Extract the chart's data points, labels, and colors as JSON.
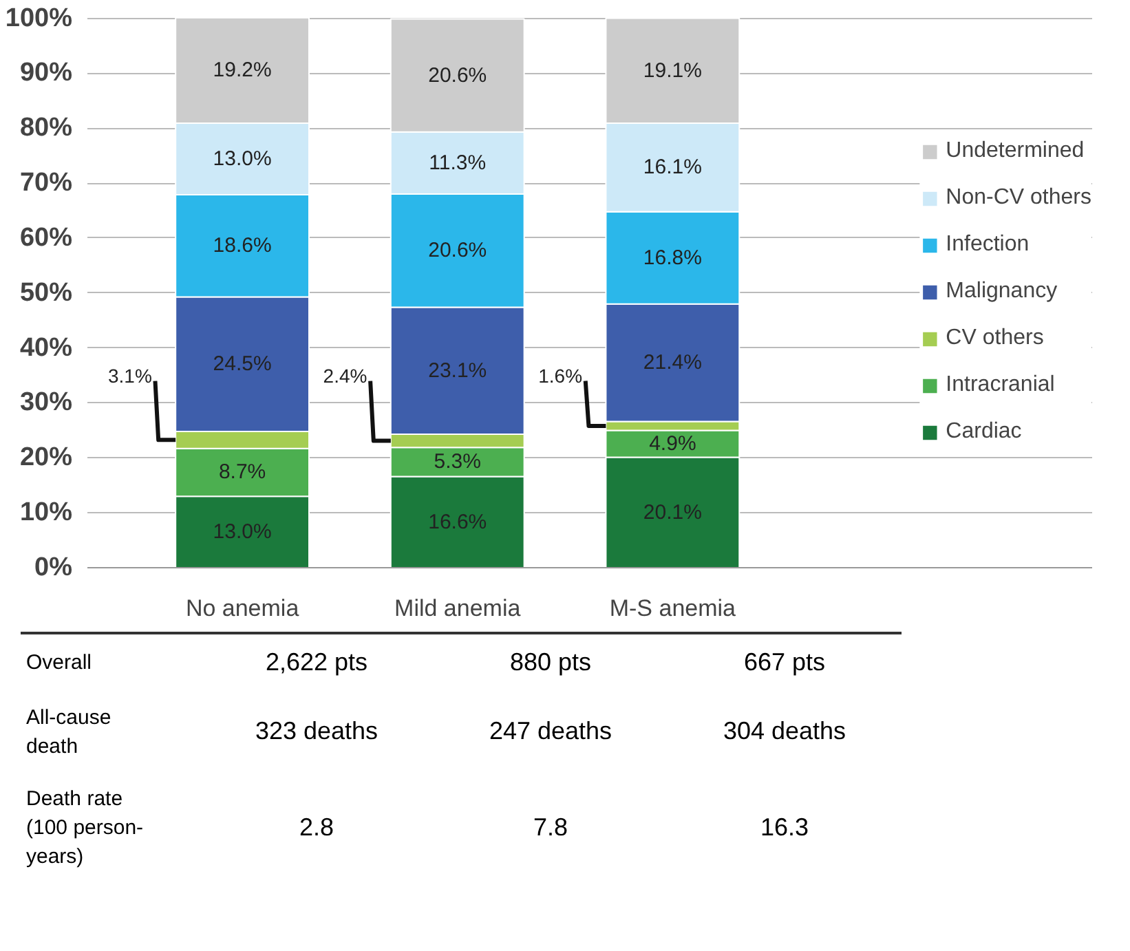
{
  "chart_data": {
    "type": "bar",
    "stacked": true,
    "categories": [
      "No anemia",
      "Mild anemia",
      "M-S anemia"
    ],
    "ylim": [
      0,
      100.2
    ],
    "yticks": [
      {
        "value": 0,
        "label": "0%"
      },
      {
        "value": 10,
        "label": "10%"
      },
      {
        "value": 20,
        "label": "20%"
      },
      {
        "value": 30,
        "label": "30%"
      },
      {
        "value": 40,
        "label": "40%"
      },
      {
        "value": 50,
        "label": "50%"
      },
      {
        "value": 60,
        "label": "60%"
      },
      {
        "value": 70,
        "label": "70%"
      },
      {
        "value": 80,
        "label": "80%"
      },
      {
        "value": 90,
        "label": "90%"
      },
      {
        "value": 100,
        "label": "100%"
      }
    ],
    "grid": "y",
    "legend": "right",
    "series": [
      {
        "name": "Cardiac",
        "color": "#1b7a3c",
        "values": [
          13.0,
          16.6,
          20.1
        ],
        "value_labels": [
          "13.0%",
          "16.6%",
          "20.1%"
        ]
      },
      {
        "name": "Intracranial",
        "color": "#4caf50",
        "values": [
          8.7,
          5.3,
          4.9
        ],
        "value_labels": [
          "8.7%",
          "5.3%",
          "4.9%"
        ]
      },
      {
        "name": "CV others",
        "color": "#a5cd52",
        "values": [
          3.1,
          2.4,
          1.6
        ],
        "value_labels": [
          "3.1%",
          "2.4%",
          "1.6%"
        ]
      },
      {
        "name": "Malignancy",
        "color": "#3e5eab",
        "values": [
          24.5,
          23.1,
          21.4
        ],
        "value_labels": [
          "24.5%",
          "23.1%",
          "21.4%"
        ]
      },
      {
        "name": "Infection",
        "color": "#2bb7ea",
        "values": [
          18.6,
          20.6,
          16.8
        ],
        "value_labels": [
          "18.6%",
          "20.6%",
          "16.8%"
        ]
      },
      {
        "name": "Non-CV others",
        "color": "#cde9f8",
        "values": [
          13.0,
          11.3,
          16.1
        ],
        "value_labels": [
          "13.0%",
          "11.3%",
          "16.1%"
        ]
      },
      {
        "name": "Undetermined",
        "color": "#cccccc",
        "values": [
          19.2,
          20.6,
          19.1
        ],
        "value_labels": [
          "19.2%",
          "20.6%",
          "19.1%"
        ]
      }
    ],
    "annotations": [
      "Overall",
      "2,622 pts",
      "880 pts",
      "667 pts",
      "All-cause\ndeath",
      "323 deaths",
      "247 deaths",
      "304 deaths",
      "Death rate\n(100 person-\nyears)",
      "2.8",
      "7.8",
      "16.3"
    ]
  }
}
